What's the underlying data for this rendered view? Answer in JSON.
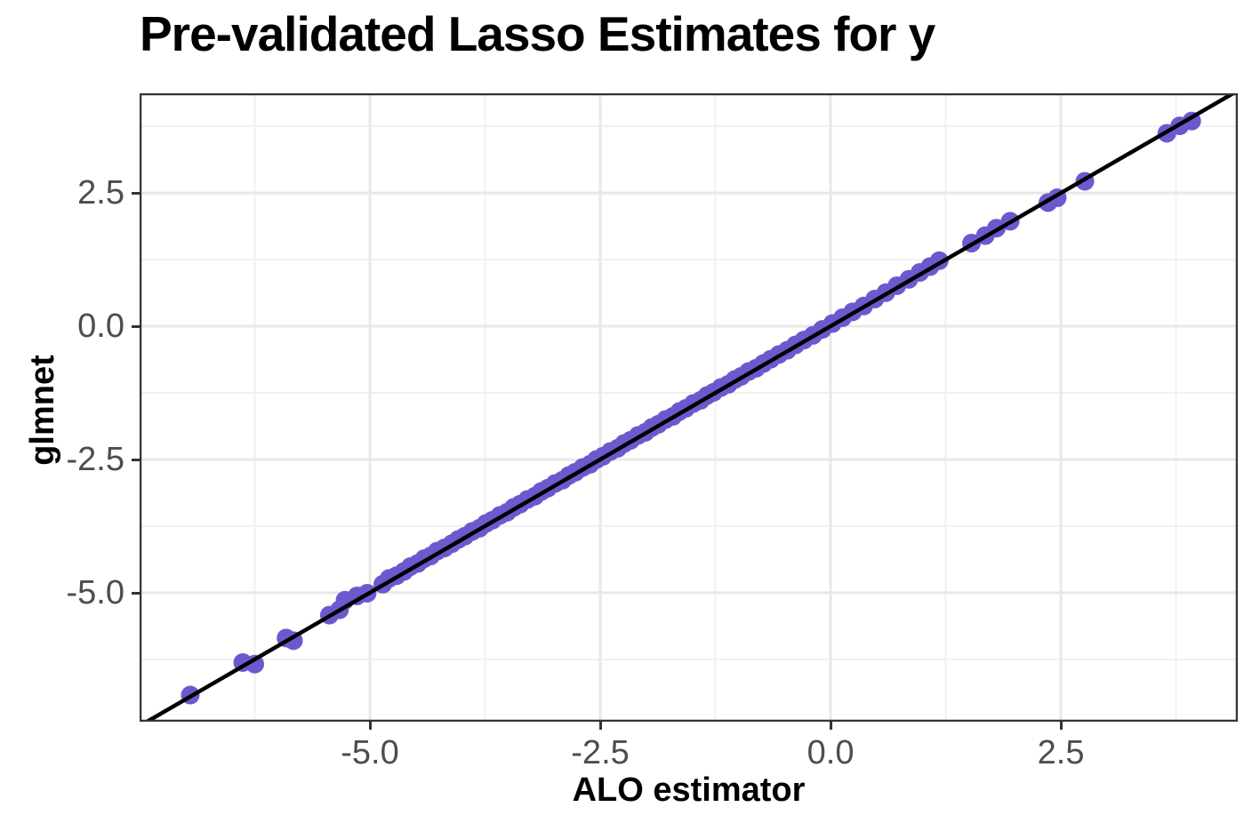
{
  "chart_data": {
    "type": "scatter",
    "title": "Pre-validated Lasso Estimates for y",
    "xlabel": "ALO estimator",
    "ylabel": "glmnet",
    "xlim": [
      -7.5,
      4.42
    ],
    "ylim": [
      -7.42,
      4.37
    ],
    "x_ticks": [
      -5.0,
      -2.5,
      0.0,
      2.5
    ],
    "x_tick_labels": [
      "-5.0",
      "-2.5",
      "0.0",
      "2.5"
    ],
    "x_minor_ticks": [
      -6.25,
      -3.75,
      -1.25,
      1.25,
      3.75
    ],
    "y_ticks": [
      2.5,
      0.0,
      -2.5,
      -5.0
    ],
    "y_tick_labels": [
      "2.5",
      "0.0",
      "-2.5",
      "-5.0"
    ],
    "y_minor_ticks": [
      3.75,
      1.25,
      -1.25,
      -3.75,
      -6.25
    ],
    "grid": true,
    "legend": "none",
    "reference_line": {
      "kind": "abline",
      "intercept": 0,
      "slope": 1,
      "color": "#000000",
      "stroke_width": 4.5
    },
    "point_style": {
      "color": "#6A5ACD",
      "radius": 10.5,
      "opacity": 1
    },
    "colors": {
      "panel_background": "#FFFFFF",
      "panel_border": "#333333",
      "grid_major": "#E8E8E8",
      "grid_minor": "#F1F1F1",
      "tick": "#333333",
      "tick_label": "#4D4D4D",
      "title": "#000000",
      "axis_title": "#000000"
    },
    "points": [
      [
        -6.95,
        -6.92
      ],
      [
        -6.38,
        -6.31
      ],
      [
        -6.25,
        -6.34
      ],
      [
        -5.91,
        -5.85
      ],
      [
        -5.83,
        -5.9
      ],
      [
        -5.44,
        -5.42
      ],
      [
        -5.33,
        -5.32
      ],
      [
        -5.27,
        -5.14
      ],
      [
        -5.14,
        -5.06
      ],
      [
        -5.03,
        -5.01
      ],
      [
        -4.86,
        -4.84
      ],
      [
        -4.79,
        -4.73
      ],
      [
        -4.71,
        -4.68
      ],
      [
        -4.63,
        -4.6
      ],
      [
        -4.56,
        -4.51
      ],
      [
        -4.48,
        -4.45
      ],
      [
        -4.41,
        -4.36
      ],
      [
        -4.34,
        -4.31
      ],
      [
        -4.27,
        -4.22
      ],
      [
        -4.19,
        -4.16
      ],
      [
        -4.11,
        -4.08
      ],
      [
        -4.04,
        -4.0
      ],
      [
        -3.97,
        -3.94
      ],
      [
        -3.89,
        -3.85
      ],
      [
        -3.81,
        -3.79
      ],
      [
        -3.74,
        -3.7
      ],
      [
        -3.67,
        -3.64
      ],
      [
        -3.59,
        -3.55
      ],
      [
        -3.51,
        -3.49
      ],
      [
        -3.44,
        -3.4
      ],
      [
        -3.37,
        -3.34
      ],
      [
        -3.29,
        -3.25
      ],
      [
        -3.21,
        -3.19
      ],
      [
        -3.14,
        -3.1
      ],
      [
        -3.07,
        -3.04
      ],
      [
        -2.99,
        -2.95
      ],
      [
        -2.91,
        -2.89
      ],
      [
        -2.84,
        -2.8
      ],
      [
        -2.77,
        -2.74
      ],
      [
        -2.69,
        -2.65
      ],
      [
        -2.61,
        -2.59
      ],
      [
        -2.54,
        -2.5
      ],
      [
        -2.47,
        -2.44
      ],
      [
        -2.39,
        -2.35
      ],
      [
        -2.31,
        -2.29
      ],
      [
        -2.24,
        -2.2
      ],
      [
        -2.17,
        -2.14
      ],
      [
        -2.09,
        -2.05
      ],
      [
        -2.01,
        -1.99
      ],
      [
        -1.94,
        -1.9
      ],
      [
        -1.87,
        -1.84
      ],
      [
        -1.79,
        -1.75
      ],
      [
        -1.71,
        -1.69
      ],
      [
        -1.64,
        -1.6
      ],
      [
        -1.57,
        -1.54
      ],
      [
        -1.49,
        -1.45
      ],
      [
        -1.41,
        -1.39
      ],
      [
        -1.34,
        -1.3
      ],
      [
        -1.27,
        -1.24
      ],
      [
        -1.19,
        -1.15
      ],
      [
        -1.11,
        -1.09
      ],
      [
        -1.04,
        -1.0
      ],
      [
        -0.97,
        -0.94
      ],
      [
        -0.89,
        -0.85
      ],
      [
        -0.81,
        -0.79
      ],
      [
        -0.73,
        -0.7
      ],
      [
        -0.65,
        -0.62
      ],
      [
        -0.56,
        -0.53
      ],
      [
        -0.47,
        -0.45
      ],
      [
        -0.38,
        -0.35
      ],
      [
        -0.29,
        -0.26
      ],
      [
        -0.19,
        -0.17
      ],
      [
        -0.09,
        -0.06
      ],
      [
        0.02,
        0.05
      ],
      [
        0.13,
        0.16
      ],
      [
        0.24,
        0.27
      ],
      [
        0.36,
        0.38
      ],
      [
        0.48,
        0.51
      ],
      [
        0.6,
        0.63
      ],
      [
        0.72,
        0.76
      ],
      [
        0.85,
        0.88
      ],
      [
        0.97,
        1.01
      ],
      [
        1.08,
        1.12
      ],
      [
        1.18,
        1.23
      ],
      [
        1.53,
        1.56
      ],
      [
        1.68,
        1.7
      ],
      [
        1.8,
        1.84
      ],
      [
        1.95,
        1.97
      ],
      [
        2.36,
        2.32
      ],
      [
        2.46,
        2.41
      ],
      [
        2.76,
        2.72
      ],
      [
        3.65,
        3.62
      ],
      [
        3.79,
        3.76
      ],
      [
        3.92,
        3.85
      ]
    ]
  }
}
